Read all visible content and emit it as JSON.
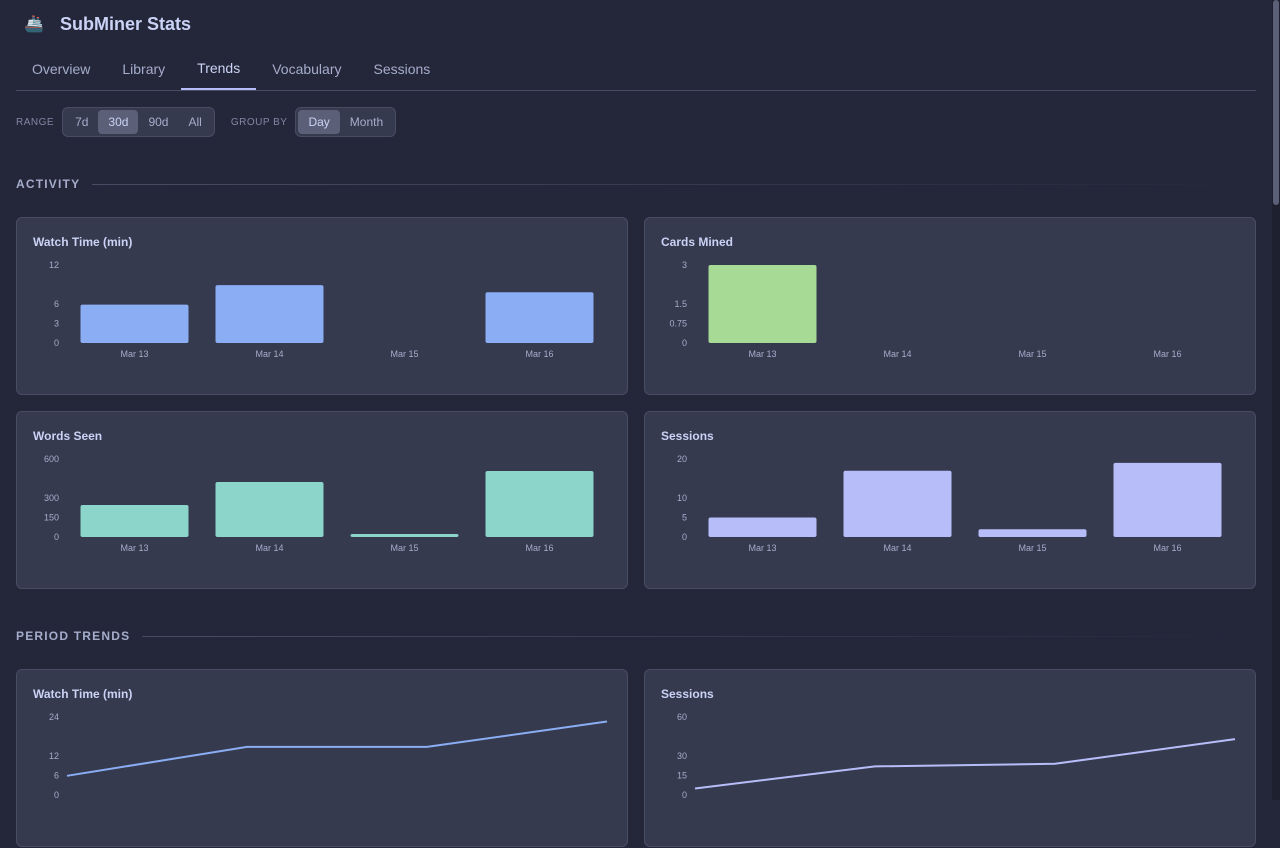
{
  "app": {
    "title": "SubMiner Stats",
    "logo_icon": "submarine-icon"
  },
  "tabs": [
    {
      "label": "Overview",
      "active": false
    },
    {
      "label": "Library",
      "active": false
    },
    {
      "label": "Trends",
      "active": true
    },
    {
      "label": "Vocabulary",
      "active": false
    },
    {
      "label": "Sessions",
      "active": false
    }
  ],
  "filters": {
    "range_label": "RANGE",
    "range_options": [
      "7d",
      "30d",
      "90d",
      "All"
    ],
    "range_selected": "30d",
    "group_label": "GROUP BY",
    "group_options": [
      "Day",
      "Month"
    ],
    "group_selected": "Day"
  },
  "sections": {
    "activity": "ACTIVITY",
    "period_trends": "PERIOD TRENDS"
  },
  "colors": {
    "blue": "#8aadf4",
    "green": "#a6da95",
    "teal": "#8bd5ca",
    "lavender": "#b7bdf8"
  },
  "chart_data": [
    {
      "id": "watch",
      "type": "bar",
      "title": "Watch Time (min)",
      "categories": [
        "Mar 13",
        "Mar 14",
        "Mar 15",
        "Mar 16"
      ],
      "values": [
        5.9,
        8.9,
        0,
        7.8
      ],
      "yticks": [
        "0",
        "3",
        "6",
        "12"
      ],
      "ylim": [
        0,
        12
      ],
      "color": "#8aadf4"
    },
    {
      "id": "cards",
      "type": "bar",
      "title": "Cards Mined",
      "categories": [
        "Mar 13",
        "Mar 14",
        "Mar 15",
        "Mar 16"
      ],
      "values": [
        3,
        0,
        0,
        0
      ],
      "yticks": [
        "0",
        "0.75",
        "1.5",
        "3"
      ],
      "ylim": [
        0,
        3
      ],
      "color": "#a6da95"
    },
    {
      "id": "words",
      "type": "bar",
      "title": "Words Seen",
      "categories": [
        "Mar 13",
        "Mar 14",
        "Mar 15",
        "Mar 16"
      ],
      "values": [
        246,
        423,
        23,
        508
      ],
      "yticks": [
        "0",
        "150",
        "300",
        "600"
      ],
      "ylim": [
        0,
        600
      ],
      "color": "#8bd5ca"
    },
    {
      "id": "sessions",
      "type": "bar",
      "title": "Sessions",
      "categories": [
        "Mar 13",
        "Mar 14",
        "Mar 15",
        "Mar 16"
      ],
      "values": [
        5,
        17,
        2,
        19
      ],
      "yticks": [
        "0",
        "5",
        "10",
        "20"
      ],
      "ylim": [
        0,
        20
      ],
      "color": "#b7bdf8"
    },
    {
      "id": "pwatch",
      "type": "line",
      "title": "Watch Time (min)",
      "values": [
        5.9,
        14.8,
        14.8,
        22.6
      ],
      "yticks": [
        "0",
        "6",
        "12",
        "24"
      ],
      "ylim": [
        0,
        24
      ],
      "color": "#8aadf4"
    },
    {
      "id": "psessions",
      "type": "line",
      "title": "Sessions",
      "values": [
        5,
        22,
        24,
        43
      ],
      "yticks": [
        "0",
        "15",
        "30",
        "60"
      ],
      "ylim": [
        0,
        60
      ],
      "color": "#b7bdf8"
    }
  ]
}
